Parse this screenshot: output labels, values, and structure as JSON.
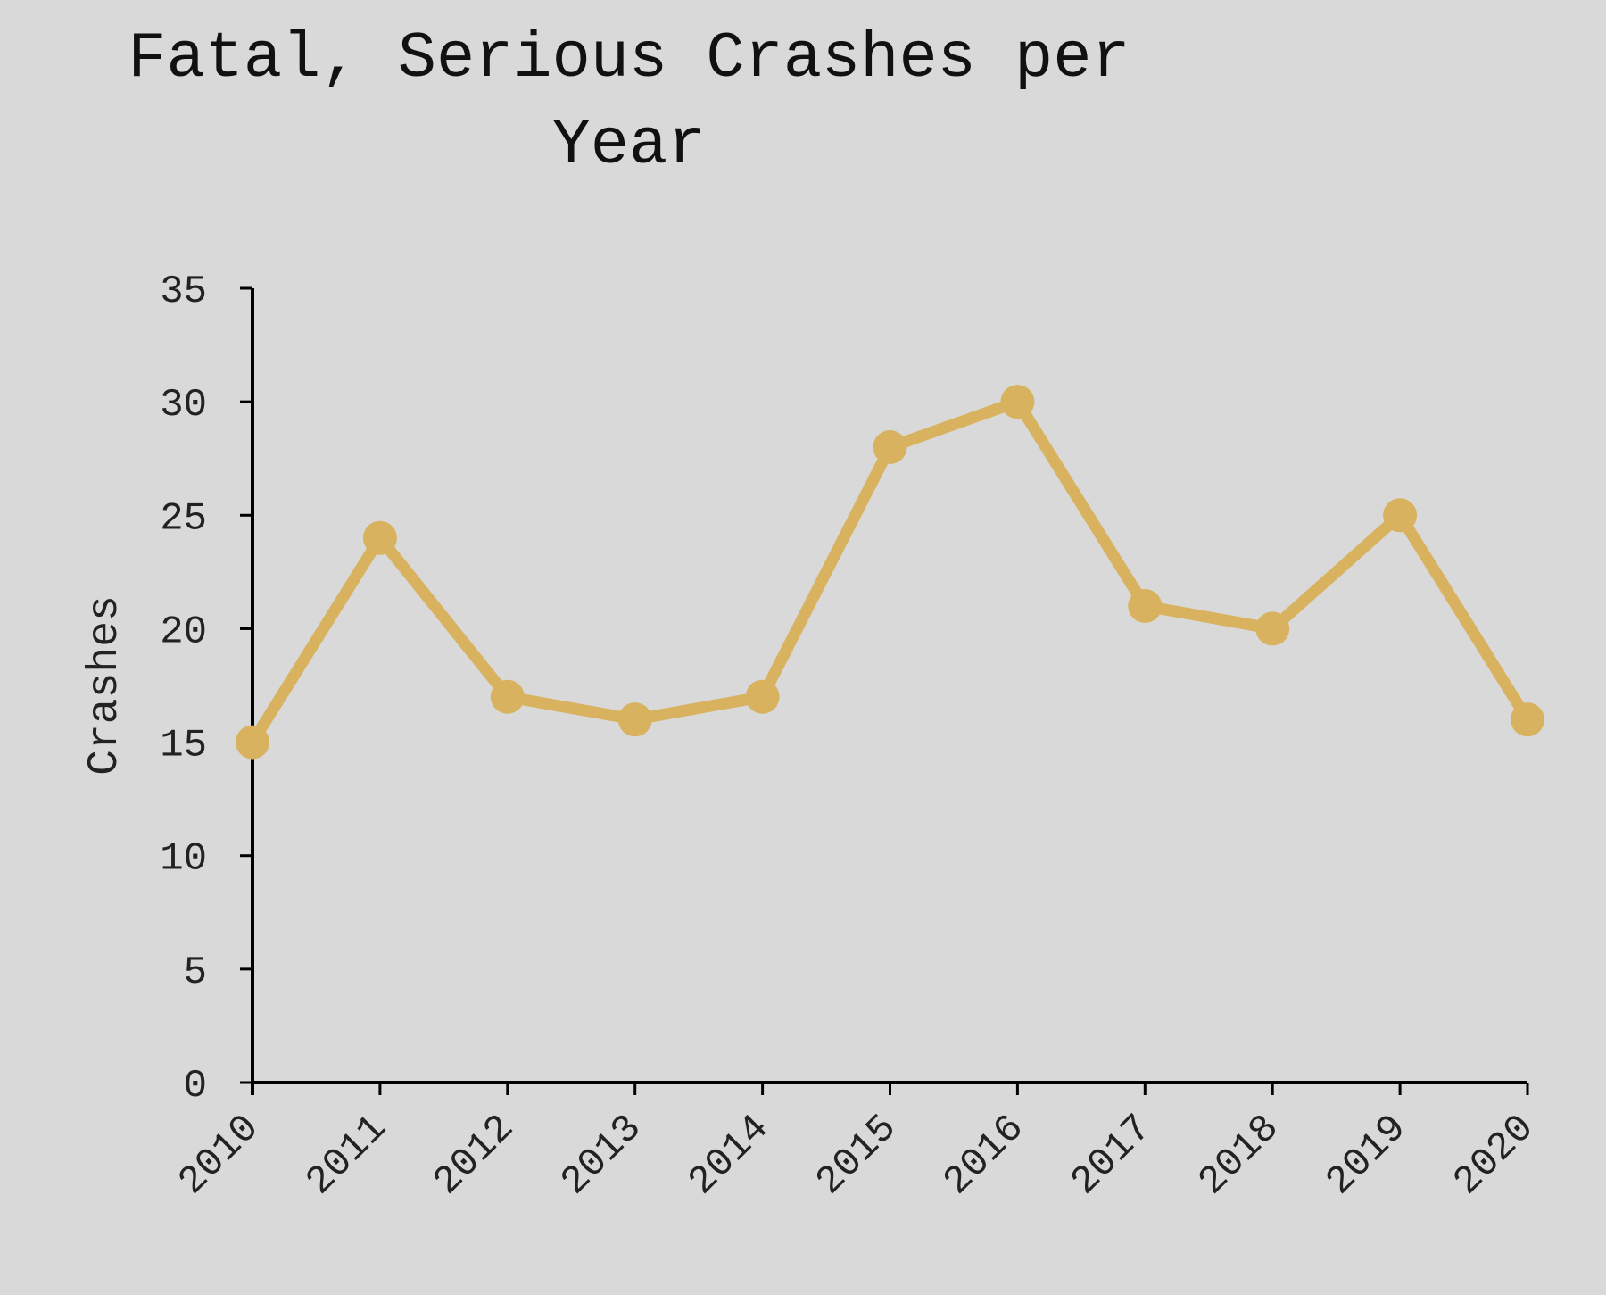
{
  "chart_data": {
    "type": "line",
    "title_lines": [
      "Fatal, Serious Crashes per",
      "Year"
    ],
    "xlabel": "",
    "ylabel": "Crashes",
    "categories": [
      "2010",
      "2011",
      "2012",
      "2013",
      "2014",
      "2015",
      "2016",
      "2017",
      "2018",
      "2019",
      "2020"
    ],
    "series": [
      {
        "values": [
          15,
          24,
          17,
          16,
          17,
          28,
          30,
          21,
          20,
          25,
          16
        ]
      }
    ],
    "ylim": [
      0,
      35
    ],
    "yticks": [
      0,
      5,
      10,
      15,
      20,
      25,
      30,
      35
    ],
    "grid": false,
    "legend": "none",
    "colors": {
      "line": "#d8b25e",
      "axis": "#000000",
      "background": "#d9d9d9"
    }
  }
}
